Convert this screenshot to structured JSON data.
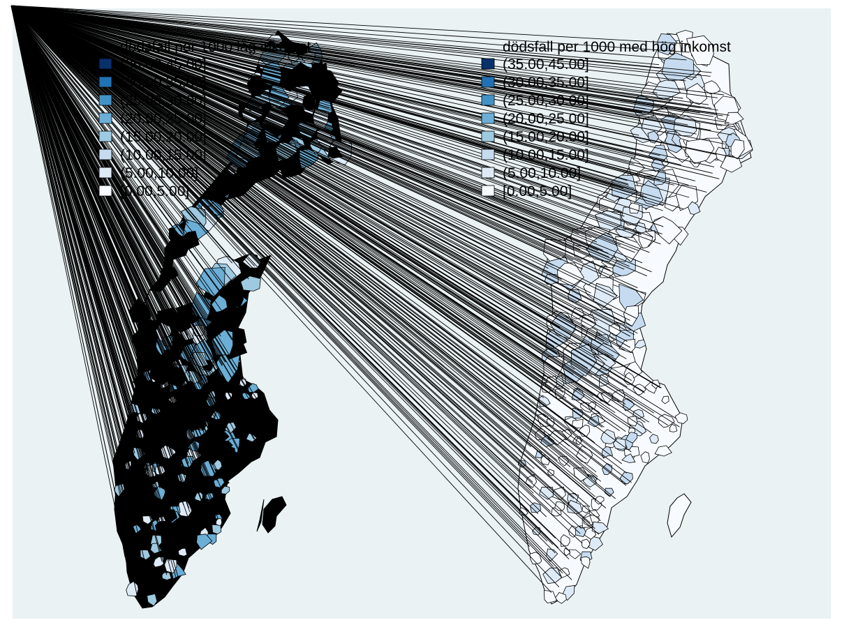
{
  "colors": {
    "background": "#eaf2f3",
    "plot_region": "#eaf2f3",
    "line": "#000000"
  },
  "maps": [
    {
      "id": "low",
      "legend_title": "dödsfall per 1000  låg inkomst",
      "dominant_class": "[10.00,15.00]"
    },
    {
      "id": "high",
      "legend_title": "dödsfall per 1000 med hög inkomst",
      "dominant_class": "[0.00,5.00]"
    }
  ],
  "legend_classes": [
    {
      "label": "(35.00,45.00]",
      "color": "#08306b"
    },
    {
      "label": "(30.00,35.00]",
      "color": "#2171b5"
    },
    {
      "label": "(25.00,30.00]",
      "color": "#4292c6"
    },
    {
      "label": "(20.00,25.00]",
      "color": "#6baed6"
    },
    {
      "label": "(15.00,20.00]",
      "color": "#9ecae1"
    },
    {
      "label": "(10.00,15.00]",
      "color": "#c6dbef"
    },
    {
      "label": "(5.00,10.00]",
      "color": "#deebf7"
    },
    {
      "label": "[0.00,5.00]",
      "color": "#f7fbff"
    }
  ]
}
